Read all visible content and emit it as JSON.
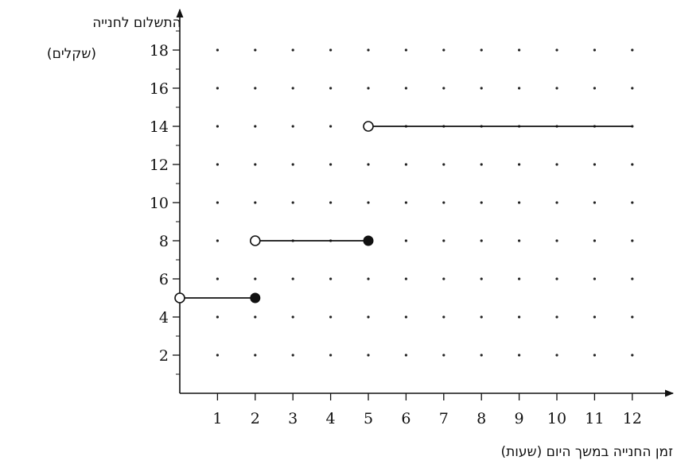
{
  "chart_data": {
    "type": "line",
    "title": "",
    "ylabel": [
      "התשלום לחנייה",
      "(שקלים)"
    ],
    "xlabel": "זמן החנייה במשך היום (שעות)",
    "xlim": [
      0,
      12
    ],
    "ylim": [
      0,
      19
    ],
    "x_ticks": [
      1,
      2,
      3,
      4,
      5,
      6,
      7,
      8,
      9,
      10,
      11,
      12
    ],
    "y_ticks": [
      2,
      4,
      6,
      8,
      10,
      12,
      14,
      16,
      18
    ],
    "grid": "dots",
    "series": [
      {
        "values": [
          {
            "x_start": 0,
            "x_end": 2,
            "y": 5,
            "start": "open",
            "end": "closed"
          },
          {
            "x_start": 2,
            "x_end": 5,
            "y": 8,
            "start": "open",
            "end": "closed"
          },
          {
            "x_start": 5,
            "x_end": 12,
            "y": 14,
            "start": "open",
            "end": "none"
          }
        ]
      }
    ]
  }
}
